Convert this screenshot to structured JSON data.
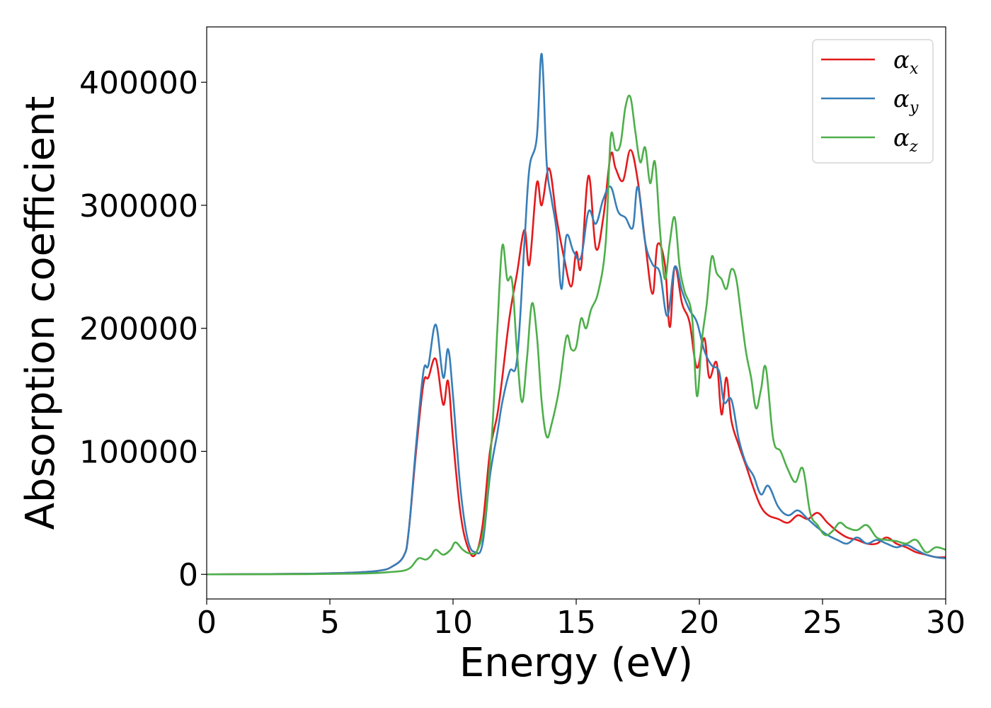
{
  "chart_data": {
    "type": "line",
    "xlabel": "Energy (eV)",
    "ylabel": "Absorption coefficient",
    "xlim": [
      0,
      30
    ],
    "ylim": [
      -20000,
      445000
    ],
    "xticks": [
      0,
      5,
      10,
      15,
      20,
      25,
      30
    ],
    "yticks": [
      0,
      100000,
      200000,
      300000,
      400000
    ],
    "grid": false,
    "legend_position": "top-right",
    "series": [
      {
        "name": "αx",
        "symbol": "α",
        "subscript": "x",
        "color": "#e41a1c",
        "x": [
          0,
          4,
          6,
          7,
          7.5,
          8,
          8.2,
          8.5,
          8.8,
          9.0,
          9.3,
          9.6,
          9.8,
          10.0,
          10.3,
          10.6,
          10.9,
          11.2,
          11.5,
          11.8,
          12.0,
          12.3,
          12.6,
          12.9,
          13.1,
          13.4,
          13.6,
          13.9,
          14.2,
          14.5,
          14.8,
          15.0,
          15.2,
          15.5,
          15.8,
          16.1,
          16.4,
          16.6,
          16.9,
          17.2,
          17.5,
          17.8,
          18.1,
          18.3,
          18.6,
          18.8,
          19.0,
          19.3,
          19.6,
          19.9,
          20.2,
          20.4,
          20.7,
          20.9,
          21.1,
          21.3,
          21.6,
          21.9,
          22.2,
          22.5,
          22.8,
          23.2,
          23.6,
          24.0,
          24.4,
          24.8,
          25.2,
          25.6,
          26.0,
          26.4,
          26.8,
          27.2,
          27.6,
          28.0,
          28.4,
          28.8,
          29.2,
          29.6,
          30.0
        ],
        "y": [
          0,
          500,
          1500,
          3000,
          6000,
          15000,
          35000,
          100000,
          155000,
          160000,
          175000,
          138000,
          157000,
          110000,
          50000,
          22000,
          16000,
          40000,
          100000,
          130000,
          160000,
          210000,
          245000,
          280000,
          252000,
          318000,
          300000,
          330000,
          290000,
          258000,
          234000,
          262000,
          250000,
          324000,
          265000,
          290000,
          341000,
          330000,
          320000,
          345000,
          320000,
          270000,
          228000,
          268000,
          252000,
          201000,
          250000,
          220000,
          205000,
          168000,
          192000,
          160000,
          172000,
          130000,
          160000,
          125000,
          105000,
          88000,
          70000,
          55000,
          48000,
          45000,
          42000,
          48000,
          45000,
          50000,
          42000,
          35000,
          30000,
          28000,
          25000,
          25000,
          30000,
          25000,
          22000,
          18000,
          16000,
          14000,
          14000
        ]
      },
      {
        "name": "αy",
        "symbol": "α",
        "subscript": "y",
        "color": "#377eb8",
        "x": [
          0,
          4,
          6,
          7,
          7.5,
          8,
          8.2,
          8.5,
          8.8,
          9.0,
          9.3,
          9.6,
          9.8,
          10.0,
          10.3,
          10.6,
          10.9,
          11.2,
          11.5,
          11.8,
          12.0,
          12.3,
          12.6,
          12.9,
          13.1,
          13.4,
          13.6,
          13.8,
          14.0,
          14.2,
          14.4,
          14.6,
          14.9,
          15.2,
          15.5,
          15.8,
          16.1,
          16.4,
          16.7,
          17.0,
          17.3,
          17.5,
          17.8,
          18.1,
          18.4,
          18.7,
          19.0,
          19.3,
          19.6,
          19.9,
          20.2,
          20.5,
          20.8,
          21.0,
          21.3,
          21.6,
          21.9,
          22.2,
          22.5,
          22.8,
          23.2,
          23.6,
          24.0,
          24.4,
          24.8,
          25.2,
          25.6,
          26.0,
          26.4,
          26.8,
          27.2,
          27.6,
          28.0,
          28.4,
          28.8,
          29.2,
          29.6,
          30.0
        ],
        "y": [
          0,
          500,
          1500,
          3000,
          6000,
          15000,
          35000,
          105000,
          165000,
          170000,
          203000,
          160000,
          183000,
          145000,
          70000,
          28000,
          18000,
          25000,
          80000,
          115000,
          140000,
          165000,
          175000,
          270000,
          330000,
          355000,
          423000,
          335000,
          305000,
          280000,
          232000,
          275000,
          262000,
          258000,
          295000,
          285000,
          305000,
          315000,
          295000,
          290000,
          282000,
          315000,
          270000,
          252000,
          245000,
          210000,
          250000,
          230000,
          215000,
          205000,
          182000,
          170000,
          165000,
          140000,
          142000,
          110000,
          90000,
          80000,
          65000,
          72000,
          55000,
          48000,
          52000,
          45000,
          38000,
          32000,
          28000,
          25000,
          30000,
          25000,
          28000,
          25000,
          22000,
          24000,
          20000,
          16000,
          14000,
          13000
        ]
      },
      {
        "name": "αz",
        "symbol": "α",
        "subscript": "z",
        "color": "#4daf4a",
        "x": [
          0,
          4,
          6,
          7,
          7.5,
          8,
          8.3,
          8.6,
          8.9,
          9.1,
          9.3,
          9.6,
          9.9,
          10.1,
          10.4,
          10.7,
          11.0,
          11.3,
          11.6,
          11.8,
          12.0,
          12.2,
          12.4,
          12.6,
          12.8,
          13.0,
          13.2,
          13.4,
          13.6,
          13.8,
          14.0,
          14.3,
          14.6,
          14.8,
          15.0,
          15.2,
          15.4,
          15.6,
          15.9,
          16.2,
          16.4,
          16.6,
          16.8,
          17.0,
          17.2,
          17.4,
          17.6,
          17.8,
          18.0,
          18.2,
          18.4,
          18.6,
          18.8,
          19.0,
          19.2,
          19.4,
          19.7,
          19.9,
          20.1,
          20.3,
          20.5,
          20.7,
          20.9,
          21.1,
          21.3,
          21.5,
          21.7,
          21.9,
          22.1,
          22.3,
          22.5,
          22.7,
          23.0,
          23.3,
          23.6,
          23.9,
          24.2,
          24.5,
          24.8,
          25.1,
          25.4,
          25.7,
          26.0,
          26.4,
          26.8,
          27.2,
          27.6,
          28.0,
          28.4,
          28.8,
          29.2,
          29.6,
          30.0
        ],
        "y": [
          0,
          200,
          600,
          1200,
          2000,
          3000,
          6000,
          13000,
          12000,
          15000,
          20000,
          16000,
          20000,
          26000,
          20000,
          17000,
          20000,
          45000,
          120000,
          200000,
          267000,
          240000,
          238000,
          180000,
          140000,
          175000,
          220000,
          195000,
          140000,
          112000,
          122000,
          150000,
          193000,
          183000,
          185000,
          208000,
          200000,
          215000,
          230000,
          270000,
          355000,
          345000,
          350000,
          380000,
          388000,
          360000,
          335000,
          347000,
          318000,
          335000,
          280000,
          240000,
          270000,
          290000,
          250000,
          230000,
          210000,
          145000,
          190000,
          220000,
          258000,
          245000,
          240000,
          232000,
          248000,
          240000,
          210000,
          180000,
          160000,
          135000,
          150000,
          168000,
          110000,
          100000,
          85000,
          75000,
          86000,
          50000,
          40000,
          32000,
          35000,
          42000,
          38000,
          36000,
          40000,
          30000,
          28000,
          27000,
          25000,
          28000,
          18000,
          22000,
          20000
        ]
      }
    ]
  }
}
